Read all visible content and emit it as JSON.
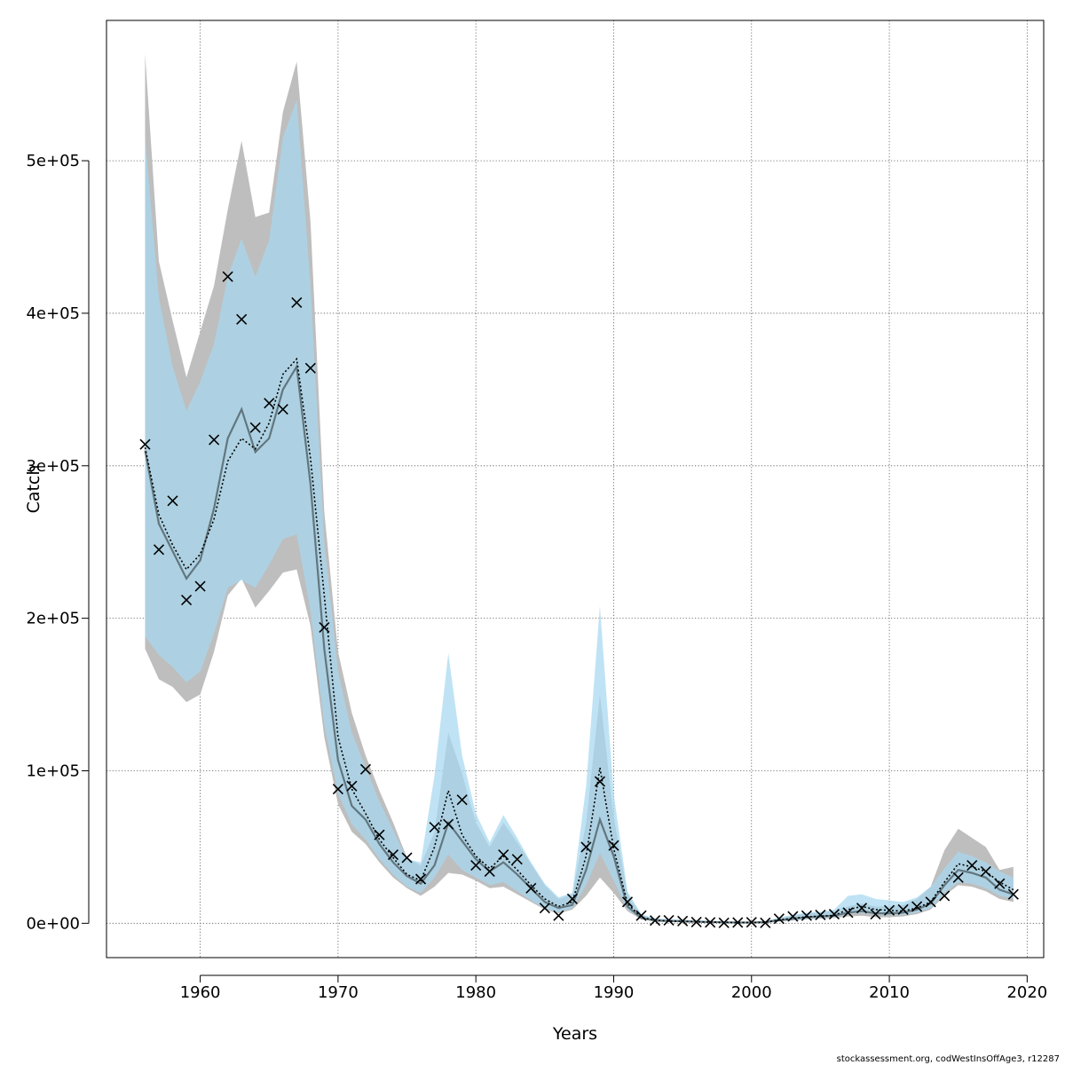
{
  "chart_data": {
    "type": "line",
    "title": "",
    "xlabel": "Years",
    "ylabel": "Catch",
    "xlim": [
      1953.2,
      2021.2
    ],
    "ylim": [
      -22500,
      592000
    ],
    "x_ticks": [
      1960,
      1970,
      1980,
      1990,
      2000,
      2010,
      2020
    ],
    "x_tick_labels": [
      "1960",
      "1970",
      "1980",
      "1990",
      "2000",
      "2010",
      "2020"
    ],
    "y_ticks": [
      0,
      100000,
      200000,
      300000,
      400000,
      500000
    ],
    "y_tick_labels": [
      "0e+00",
      "1e+05",
      "2e+05",
      "3e+05",
      "4e+05",
      "5e+05"
    ],
    "grid": true,
    "legend": "none",
    "credit": "stockassessment.org, codWestInsOffAge3, r12287",
    "colors": {
      "grey_band": "#bebebe",
      "blue_band": "#a6d8f0",
      "overlap": "#a3c4d6",
      "line": "#000000"
    },
    "years": [
      1956,
      1957,
      1958,
      1959,
      1960,
      1961,
      1962,
      1963,
      1964,
      1965,
      1966,
      1967,
      1968,
      1969,
      1970,
      1971,
      1972,
      1973,
      1974,
      1975,
      1976,
      1977,
      1978,
      1979,
      1980,
      1981,
      1982,
      1983,
      1984,
      1985,
      1986,
      1987,
      1988,
      1989,
      1990,
      1991,
      1992,
      1993,
      1994,
      1995,
      1996,
      1997,
      1998,
      1999,
      2000,
      2001,
      2002,
      2003,
      2004,
      2005,
      2006,
      2007,
      2008,
      2009,
      2010,
      2011,
      2012,
      2013,
      2014,
      2015,
      2016,
      2017,
      2018,
      2019
    ],
    "series": [
      {
        "role": "estimate-solid",
        "values": [
          310000,
          262000,
          244000,
          226000,
          238000,
          272000,
          318000,
          337000,
          309000,
          318000,
          350000,
          365000,
          288000,
          180000,
          107000,
          77000,
          68000,
          52000,
          40000,
          31000,
          26000,
          38000,
          66000,
          54000,
          42000,
          34000,
          40000,
          32000,
          23000,
          14000,
          10000,
          12000,
          35000,
          68000,
          44000,
          11000,
          3500,
          1800,
          1500,
          1300,
          1000,
          800,
          600,
          500,
          500,
          700,
          2000,
          3000,
          4000,
          4500,
          5000,
          7000,
          8000,
          6500,
          6500,
          7000,
          9000,
          13000,
          25000,
          35000,
          33000,
          30000,
          22000,
          19000
        ],
        "lower": [
          180000,
          160000,
          155000,
          145000,
          150000,
          178000,
          215000,
          226000,
          207000,
          218000,
          230000,
          232000,
          195000,
          122000,
          78000,
          60000,
          52000,
          40000,
          30000,
          23000,
          18000,
          24000,
          33000,
          32000,
          28000,
          23000,
          24000,
          19000,
          14000,
          9000,
          6500,
          9000,
          18000,
          30000,
          20000,
          8000,
          2500,
          1200,
          1000,
          800,
          600,
          400,
          300,
          250,
          250,
          400,
          1200,
          1800,
          2500,
          3000,
          3500,
          4500,
          5000,
          4000,
          4000,
          4500,
          6000,
          9000,
          18000,
          25000,
          24000,
          21000,
          16000,
          14000
        ],
        "upper": [
          570000,
          434000,
          395000,
          358000,
          388000,
          418000,
          468000,
          513000,
          463000,
          466000,
          532000,
          565000,
          460000,
          270000,
          178000,
          138000,
          110000,
          87000,
          66000,
          43000,
          38000,
          60000,
          125000,
          98000,
          66000,
          50000,
          66000,
          53000,
          39000,
          25000,
          16000,
          19000,
          66000,
          150000,
          70000,
          19000,
          5500,
          3000,
          2500,
          2300,
          1900,
          1500,
          1200,
          1000,
          1000,
          1300,
          3500,
          5000,
          6500,
          7000,
          8000,
          11000,
          13000,
          11000,
          11000,
          12000,
          16000,
          24000,
          48000,
          62000,
          56000,
          50000,
          35000,
          37000
        ]
      },
      {
        "role": "estimate-dotted",
        "values": [
          312000,
          268000,
          248000,
          232000,
          242000,
          265000,
          303000,
          318000,
          311000,
          328000,
          360000,
          370000,
          305000,
          215000,
          122000,
          88000,
          72000,
          55000,
          43000,
          32000,
          28000,
          50000,
          87000,
          58000,
          44000,
          36000,
          44000,
          35000,
          25000,
          16000,
          11000,
          14000,
          44000,
          102000,
          49000,
          13000,
          4000,
          2000,
          1500,
          1300,
          1000,
          800,
          600,
          500,
          500,
          700,
          2200,
          3200,
          4200,
          4700,
          5200,
          9000,
          11000,
          9000,
          8500,
          8000,
          10000,
          14000,
          27000,
          39000,
          37000,
          34000,
          27000,
          22000
        ],
        "lower": [
          188000,
          176000,
          168000,
          158000,
          165000,
          190000,
          220000,
          225000,
          220000,
          235000,
          252000,
          255000,
          205000,
          130000,
          85000,
          65000,
          55000,
          42000,
          32000,
          24000,
          20000,
          30000,
          45000,
          35000,
          30000,
          25000,
          27000,
          21000,
          15000,
          9500,
          7000,
          10000,
          25000,
          46000,
          28000,
          9000,
          3000,
          1500,
          1100,
          900,
          700,
          500,
          350,
          300,
          300,
          450,
          1400,
          2000,
          2800,
          3300,
          3800,
          6000,
          7000,
          5500,
          5500,
          5500,
          7000,
          10000,
          20000,
          27000,
          26000,
          23000,
          18000,
          16000
        ],
        "upper": [
          515000,
          410000,
          365000,
          336000,
          355000,
          380000,
          424000,
          449000,
          424000,
          448000,
          515000,
          540000,
          418000,
          250000,
          165000,
          125000,
          102000,
          80000,
          61000,
          42000,
          40000,
          97000,
          177000,
          110000,
          72000,
          53000,
          71000,
          56000,
          40000,
          26000,
          17000,
          20000,
          90000,
          208000,
          85000,
          21000,
          6000,
          3200,
          2700,
          2400,
          2000,
          1600,
          1300,
          1100,
          1100,
          1400,
          3800,
          5500,
          7000,
          7600,
          9000,
          18000,
          19000,
          16000,
          15000,
          14000,
          17000,
          24000,
          36000,
          47000,
          44000,
          40000,
          34000,
          30000
        ]
      },
      {
        "role": "observed",
        "marker": "x",
        "values": [
          314000,
          245000,
          277000,
          212000,
          221000,
          317000,
          424000,
          396000,
          325000,
          341000,
          337000,
          407000,
          364000,
          194000,
          88000,
          90000,
          101000,
          58000,
          45000,
          43000,
          29000,
          63000,
          65000,
          81000,
          38000,
          34000,
          45000,
          42000,
          23000,
          10000,
          5000,
          16000,
          50000,
          93000,
          51000,
          14000,
          5000,
          1800,
          2000,
          1500,
          800,
          600,
          300,
          500,
          700,
          300,
          3000,
          4500,
          5000,
          5500,
          6000,
          7000,
          10000,
          6000,
          8500,
          9000,
          11000,
          14000,
          18000,
          30000,
          38000,
          34000,
          26000,
          19000
        ]
      }
    ]
  }
}
